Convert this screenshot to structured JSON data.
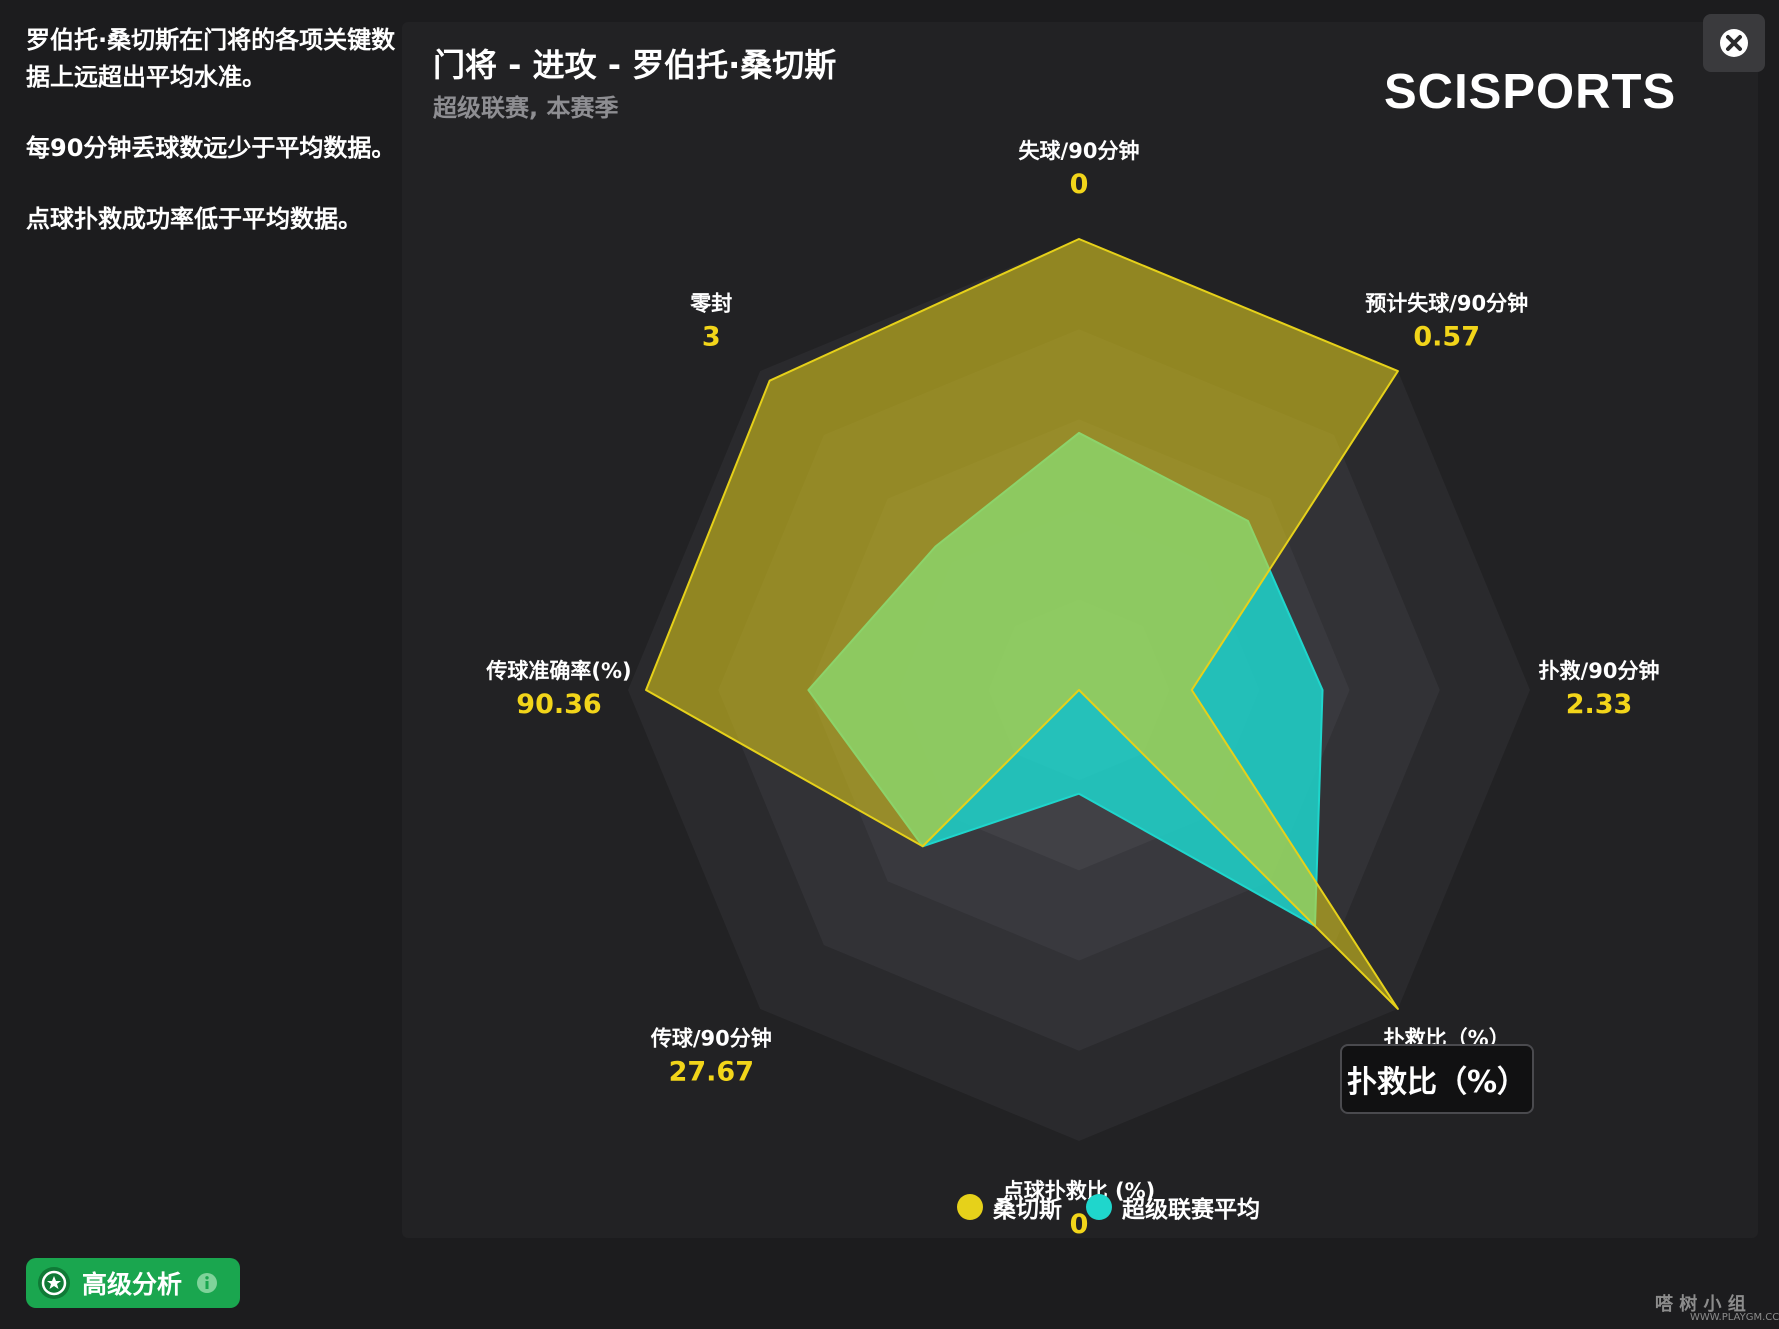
{
  "sidebar": {
    "summary": [
      "罗伯托·桑切斯在门将的各项关键数据上远超出平均水准。",
      "每90分钟丢球数远少于平均数据。",
      "点球扑救成功率低于平均数据。"
    ]
  },
  "header": {
    "title": "门将 - 进攻 - 罗伯托·桑切斯",
    "subtitle": "超级联赛, 本赛季",
    "brand": "SCISPORTS"
  },
  "tooltip": {
    "text": "扑救比（%）"
  },
  "footer": {
    "advanced_label": "高级分析",
    "watermark": "嗒 树 小 组",
    "watermark_sub": "WWW.PLAYGM.CC"
  },
  "colors": {
    "player": "#e6d11a",
    "average": "#1fd6cc",
    "value_text": "#f2d51a",
    "accent_button": "#1aa64f"
  },
  "chart_data": {
    "type": "radar",
    "axes": [
      {
        "label": "失球/90分钟",
        "value_text": "0"
      },
      {
        "label": "预计失球/90分钟",
        "value_text": "0.57"
      },
      {
        "label": "扑救/90分钟",
        "value_text": "2.33"
      },
      {
        "label": "扑救比（%）",
        "value_text": "100"
      },
      {
        "label": "点球扑救比 (%)",
        "value_text": "0"
      },
      {
        "label": "传球/90分钟",
        "value_text": "27.67"
      },
      {
        "label": "传球准确率(%)",
        "value_text": "90.36"
      },
      {
        "label": "零封",
        "value_text": "3"
      }
    ],
    "scale": [
      0,
      1
    ],
    "rings": 5,
    "series": [
      {
        "name": "桑切斯",
        "values": [
          1.0,
          1.0,
          0.25,
          1.0,
          0.0,
          0.49,
          0.96,
          0.97
        ]
      },
      {
        "name": "超级联赛平均",
        "values": [
          0.57,
          0.53,
          0.54,
          0.74,
          0.23,
          0.49,
          0.6,
          0.45
        ]
      }
    ],
    "legend_position": "bottom"
  }
}
